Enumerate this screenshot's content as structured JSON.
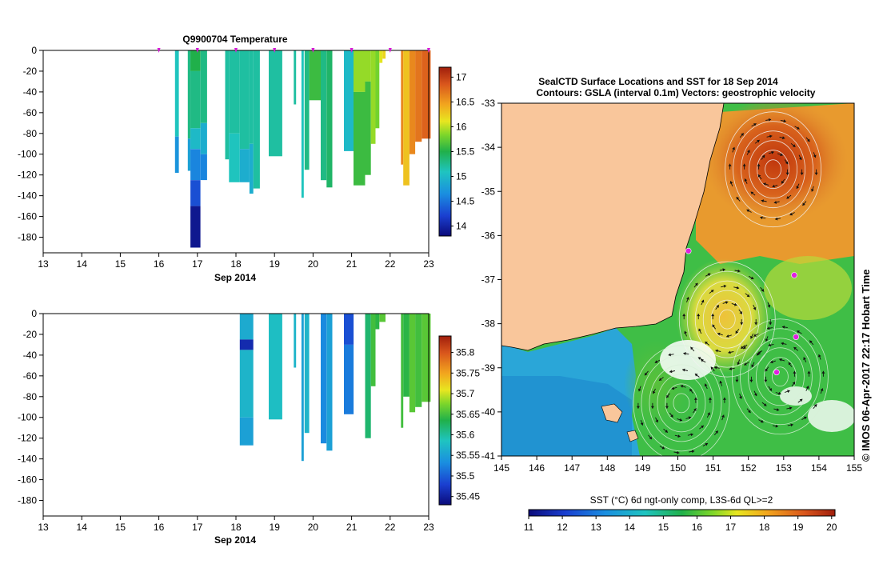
{
  "chart_data": [
    {
      "type": "heatmap",
      "title": "Q9900704  Temperature",
      "xlabel": "Sep 2014",
      "ylabel": "",
      "x_ticks": [
        "13",
        "14",
        "15",
        "16",
        "17",
        "18",
        "19",
        "20",
        "21",
        "22",
        "23"
      ],
      "xlim": [
        13,
        23
      ],
      "y_ticks": [
        "0",
        "-20",
        "-40",
        "-60",
        "-80",
        "-100",
        "-120",
        "-140",
        "-160",
        "-180"
      ],
      "ylim": [
        -195,
        0
      ],
      "grid": false,
      "markers_at_surface": [
        16,
        17,
        18,
        19,
        20,
        21,
        22,
        23
      ],
      "colorbar": {
        "ticks": [
          "14",
          "14.5",
          "15",
          "15.5",
          "16",
          "16.5",
          "17"
        ],
        "range": [
          13.8,
          17.2
        ]
      },
      "profiles": [
        {
          "x0": 16.42,
          "x1": 16.52,
          "depth": 118,
          "segments": [
            {
              "to": 83,
              "value": 15.1
            },
            {
              "to": 118,
              "value": 14.7
            }
          ]
        },
        {
          "x0": 16.75,
          "x1": 16.82,
          "depth": 116,
          "segments": [
            {
              "to": 85,
              "value": 15.3
            },
            {
              "to": 116,
              "value": 14.8
            }
          ]
        },
        {
          "x0": 16.82,
          "x1": 17.08,
          "depth": 190,
          "segments": [
            {
              "to": 20,
              "value": 15.5
            },
            {
              "to": 75,
              "value": 15.3
            },
            {
              "to": 95,
              "value": 15.0
            },
            {
              "to": 125,
              "value": 14.6
            },
            {
              "to": 150,
              "value": 14.3
            },
            {
              "to": 190,
              "value": 13.9
            }
          ]
        },
        {
          "x0": 17.08,
          "x1": 17.25,
          "depth": 125,
          "segments": [
            {
              "to": 70,
              "value": 15.3
            },
            {
              "to": 100,
              "value": 14.9
            },
            {
              "to": 125,
              "value": 14.6
            }
          ]
        },
        {
          "x0": 17.72,
          "x1": 17.82,
          "depth": 105,
          "segments": [
            {
              "to": 105,
              "value": 15.2
            }
          ]
        },
        {
          "x0": 17.82,
          "x1": 18.1,
          "depth": 127,
          "segments": [
            {
              "to": 80,
              "value": 15.2
            },
            {
              "to": 127,
              "value": 15.1
            }
          ]
        },
        {
          "x0": 18.1,
          "x1": 18.35,
          "depth": 127,
          "segments": [
            {
              "to": 95,
              "value": 15.2
            },
            {
              "to": 127,
              "value": 14.9
            }
          ]
        },
        {
          "x0": 18.35,
          "x1": 18.45,
          "depth": 138,
          "segments": [
            {
              "to": 90,
              "value": 15.2
            },
            {
              "to": 138,
              "value": 14.9
            }
          ]
        },
        {
          "x0": 18.45,
          "x1": 18.62,
          "depth": 133,
          "segments": [
            {
              "to": 133,
              "value": 15.2
            }
          ]
        },
        {
          "x0": 18.85,
          "x1": 19.2,
          "depth": 102,
          "segments": [
            {
              "to": 102,
              "value": 15.2
            }
          ]
        },
        {
          "x0": 19.5,
          "x1": 19.56,
          "depth": 52,
          "segments": [
            {
              "to": 52,
              "value": 15.2
            }
          ]
        },
        {
          "x0": 19.7,
          "x1": 19.76,
          "depth": 142,
          "segments": [
            {
              "to": 142,
              "value": 15.1
            }
          ]
        },
        {
          "x0": 19.78,
          "x1": 19.9,
          "depth": 115,
          "segments": [
            {
              "to": 115,
              "value": 15.3
            }
          ]
        },
        {
          "x0": 19.9,
          "x1": 20.2,
          "depth": 48,
          "segments": [
            {
              "to": 48,
              "value": 15.6
            }
          ]
        },
        {
          "x0": 20.2,
          "x1": 20.35,
          "depth": 125,
          "segments": [
            {
              "to": 125,
              "value": 15.3
            }
          ]
        },
        {
          "x0": 20.35,
          "x1": 20.5,
          "depth": 132,
          "segments": [
            {
              "to": 132,
              "value": 15.4
            }
          ]
        },
        {
          "x0": 20.8,
          "x1": 21.05,
          "depth": 97,
          "segments": [
            {
              "to": 97,
              "value": 15.0
            }
          ]
        },
        {
          "x0": 21.05,
          "x1": 21.35,
          "depth": 130,
          "segments": [
            {
              "to": 40,
              "value": 15.9
            },
            {
              "to": 130,
              "value": 15.6
            }
          ]
        },
        {
          "x0": 21.35,
          "x1": 21.5,
          "depth": 120,
          "segments": [
            {
              "to": 30,
              "value": 15.9
            },
            {
              "to": 120,
              "value": 15.6
            }
          ]
        },
        {
          "x0": 21.5,
          "x1": 21.62,
          "depth": 90,
          "segments": [
            {
              "to": 90,
              "value": 15.9
            }
          ]
        },
        {
          "x0": 21.62,
          "x1": 21.72,
          "depth": 75,
          "segments": [
            {
              "to": 75,
              "value": 15.8
            }
          ]
        },
        {
          "x0": 21.72,
          "x1": 21.8,
          "depth": 12,
          "segments": [
            {
              "to": 12,
              "value": 16.1
            }
          ]
        },
        {
          "x0": 21.8,
          "x1": 21.88,
          "depth": 8,
          "segments": [
            {
              "to": 8,
              "value": 16.2
            }
          ]
        },
        {
          "x0": 22.28,
          "x1": 22.34,
          "depth": 110,
          "segments": [
            {
              "to": 110,
              "value": 16.6
            }
          ]
        },
        {
          "x0": 22.34,
          "x1": 22.5,
          "depth": 130,
          "segments": [
            {
              "to": 130,
              "value": 16.3
            }
          ]
        },
        {
          "x0": 22.5,
          "x1": 22.65,
          "depth": 100,
          "segments": [
            {
              "to": 100,
              "value": 16.6
            }
          ]
        },
        {
          "x0": 22.65,
          "x1": 22.82,
          "depth": 88,
          "segments": [
            {
              "to": 88,
              "value": 16.7
            }
          ]
        },
        {
          "x0": 22.82,
          "x1": 23.05,
          "depth": 85,
          "segments": [
            {
              "to": 85,
              "value": 16.8
            }
          ]
        }
      ]
    },
    {
      "type": "heatmap",
      "title": "",
      "xlabel": "Sep 2014",
      "ylabel": "",
      "x_ticks": [
        "13",
        "14",
        "15",
        "16",
        "17",
        "18",
        "19",
        "20",
        "21",
        "22",
        "23"
      ],
      "xlim": [
        13,
        23
      ],
      "y_ticks": [
        "0",
        "-20",
        "-40",
        "-60",
        "-80",
        "-100",
        "-120",
        "-140",
        "-160",
        "-180"
      ],
      "ylim": [
        -195,
        0
      ],
      "grid": false,
      "colorbar": {
        "ticks": [
          "35.45",
          "35.5",
          "35.55",
          "35.6",
          "35.65",
          "35.7",
          "35.75",
          "35.8"
        ],
        "range": [
          35.43,
          35.84
        ]
      },
      "profiles": [
        {
          "x0": 18.1,
          "x1": 18.45,
          "depth": 127,
          "segments": [
            {
              "to": 25,
              "value": 35.56
            },
            {
              "to": 35,
              "value": 35.46
            },
            {
              "to": 100,
              "value": 35.57
            },
            {
              "to": 127,
              "value": 35.55
            }
          ]
        },
        {
          "x0": 18.85,
          "x1": 19.2,
          "depth": 102,
          "segments": [
            {
              "to": 102,
              "value": 35.58
            }
          ]
        },
        {
          "x0": 19.5,
          "x1": 19.56,
          "depth": 52,
          "segments": [
            {
              "to": 52,
              "value": 35.57
            }
          ]
        },
        {
          "x0": 19.7,
          "x1": 19.76,
          "depth": 142,
          "segments": [
            {
              "to": 142,
              "value": 35.55
            }
          ]
        },
        {
          "x0": 19.78,
          "x1": 19.9,
          "depth": 115,
          "segments": [
            {
              "to": 115,
              "value": 35.57
            }
          ]
        },
        {
          "x0": 20.2,
          "x1": 20.35,
          "depth": 125,
          "segments": [
            {
              "to": 125,
              "value": 35.53
            }
          ]
        },
        {
          "x0": 20.35,
          "x1": 20.5,
          "depth": 132,
          "segments": [
            {
              "to": 132,
              "value": 35.55
            }
          ]
        },
        {
          "x0": 20.8,
          "x1": 21.05,
          "depth": 97,
          "segments": [
            {
              "to": 30,
              "value": 35.49
            },
            {
              "to": 97,
              "value": 35.52
            }
          ]
        },
        {
          "x0": 21.35,
          "x1": 21.5,
          "depth": 120,
          "segments": [
            {
              "to": 120,
              "value": 35.62
            }
          ]
        },
        {
          "x0": 21.5,
          "x1": 21.62,
          "depth": 70,
          "segments": [
            {
              "to": 70,
              "value": 35.65
            }
          ]
        },
        {
          "x0": 21.62,
          "x1": 21.72,
          "depth": 15,
          "segments": [
            {
              "to": 15,
              "value": 35.64
            }
          ]
        },
        {
          "x0": 21.72,
          "x1": 21.88,
          "depth": 8,
          "segments": [
            {
              "to": 8,
              "value": 35.66
            }
          ]
        },
        {
          "x0": 22.28,
          "x1": 22.34,
          "depth": 110,
          "segments": [
            {
              "to": 110,
              "value": 35.65
            }
          ]
        },
        {
          "x0": 22.34,
          "x1": 22.5,
          "depth": 80,
          "segments": [
            {
              "to": 80,
              "value": 35.64
            }
          ]
        },
        {
          "x0": 22.5,
          "x1": 22.65,
          "depth": 95,
          "segments": [
            {
              "to": 95,
              "value": 35.66
            }
          ]
        },
        {
          "x0": 22.65,
          "x1": 22.82,
          "depth": 90,
          "segments": [
            {
              "to": 90,
              "value": 35.65
            }
          ]
        },
        {
          "x0": 22.82,
          "x1": 23.05,
          "depth": 85,
          "segments": [
            {
              "to": 85,
              "value": 35.66
            }
          ]
        }
      ]
    },
    {
      "type": "heatmap",
      "title": "SealCTD Surface Locations and SST for 18 Sep 2014",
      "subtitle": "Contours: GSLA (interval 0.1m) Vectors: geostrophic velocity",
      "xlabel": "",
      "ylabel": "",
      "x_ticks": [
        "145",
        "146",
        "147",
        "148",
        "149",
        "150",
        "151",
        "152",
        "153",
        "154",
        "155"
      ],
      "xlim": [
        145,
        155
      ],
      "y_ticks": [
        "-33",
        "-34",
        "-35",
        "-36",
        "-37",
        "-38",
        "-39",
        "-40",
        "-41"
      ],
      "ylim": [
        -41,
        -33
      ],
      "side_label": "© IMOS 06-Apr-2017 22:17 Hobart Time",
      "colorbar": {
        "label": "SST (°C) 6d ngt-only comp, L3S-6d QL>=2",
        "ticks": [
          "11",
          "12",
          "13",
          "14",
          "15",
          "16",
          "17",
          "18",
          "19",
          "20"
        ],
        "range": [
          11,
          20.1
        ]
      },
      "land_color": "#f9c69b",
      "eddies": [
        {
          "lon": 152.7,
          "lat": -34.5,
          "kind": "warm"
        },
        {
          "lon": 151.4,
          "lat": -37.9,
          "kind": "warm"
        },
        {
          "lon": 152.9,
          "lat": -39.2,
          "kind": "cold"
        },
        {
          "lon": 150.1,
          "lat": -39.8,
          "kind": "cold"
        }
      ],
      "seal_locations": [
        {
          "lon": 153.3,
          "lat": -36.9
        },
        {
          "lon": 150.3,
          "lat": -36.35
        },
        {
          "lon": 152.8,
          "lat": -39.1
        },
        {
          "lon": 153.35,
          "lat": -38.3
        }
      ]
    }
  ]
}
